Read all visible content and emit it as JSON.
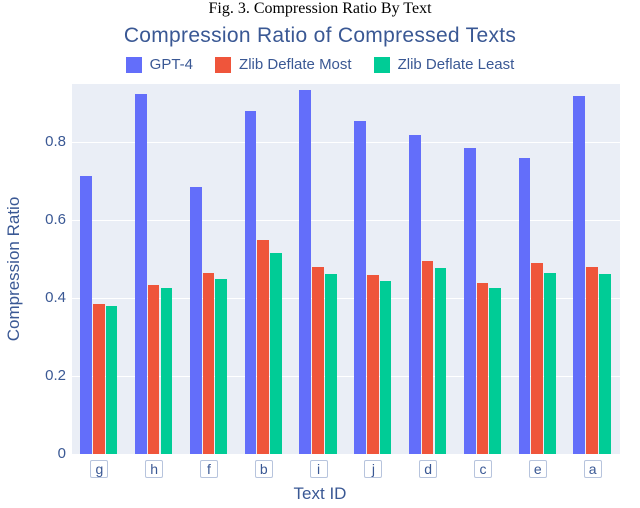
{
  "caption": "Fig. 3.   Compression Ratio By Text",
  "chart": {
    "type": "bar",
    "title": "Compression Ratio of Compressed Texts",
    "title_fontsize": 21,
    "title_color": "#3a5894",
    "xlabel": "Text ID",
    "ylabel": "Compression Ratio",
    "label_fontsize": 17,
    "label_color": "#3a5894",
    "tick_fontsize": 15,
    "tick_color": "#3a5894",
    "background_color": "#eaeef6",
    "grid_color": "#ffffff",
    "page_background": "#ffffff",
    "ylim": [
      0,
      0.95
    ],
    "yticks": [
      0,
      0.2,
      0.4,
      0.6,
      0.8
    ],
    "categories": [
      "g",
      "h",
      "f",
      "b",
      "i",
      "j",
      "d",
      "c",
      "e",
      "a"
    ],
    "series": [
      {
        "name": "GPT-4",
        "color": "#636efa",
        "values": [
          0.715,
          0.925,
          0.685,
          0.88,
          0.935,
          0.855,
          0.82,
          0.785,
          0.76,
          0.92
        ]
      },
      {
        "name": "Zlib Deflate Most",
        "color": "#ef553b",
        "values": [
          0.385,
          0.435,
          0.465,
          0.55,
          0.48,
          0.46,
          0.495,
          0.44,
          0.49,
          0.48
        ]
      },
      {
        "name": "Zlib Deflate Least",
        "color": "#00cc96",
        "values": [
          0.38,
          0.425,
          0.45,
          0.515,
          0.463,
          0.445,
          0.478,
          0.425,
          0.465,
          0.463
        ]
      }
    ],
    "group_gap": 0.3,
    "bar_gap": 0.02,
    "legend_fontsize": 15,
    "legend_text_color": "#3a5894",
    "xtick_box_border": "#b7c4dd",
    "xtick_box_bg": "#ffffff"
  }
}
